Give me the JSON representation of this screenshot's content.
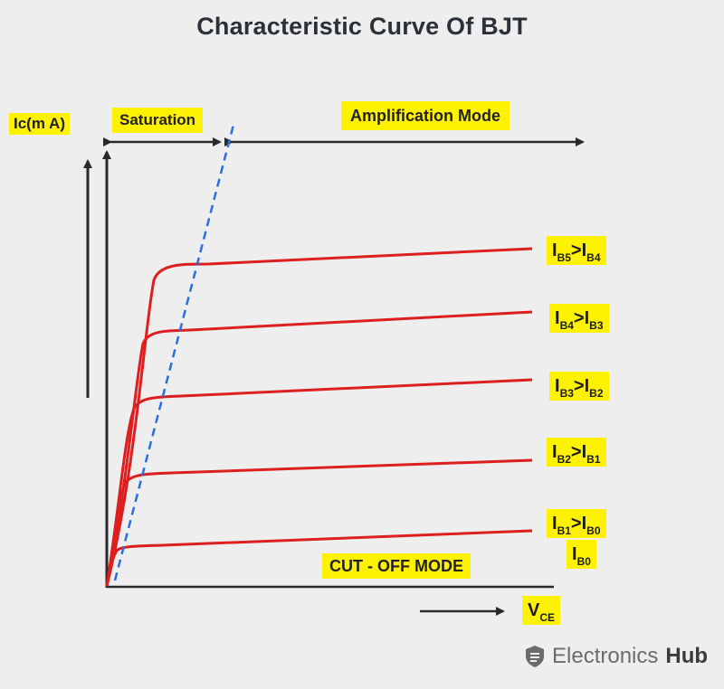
{
  "title": "Characteristic Curve Of BJT",
  "y_axis_label": "Ic(m A)",
  "x_axis_label": {
    "main": "V",
    "sub": "CE"
  },
  "regions": {
    "saturation": "Saturation",
    "amplification": "Amplification Mode",
    "cutoff": "CUT - OFF MODE"
  },
  "curves": [
    {
      "a": "I",
      "a_sub": "B5",
      "op": ">",
      "b": "I",
      "b_sub": "B4"
    },
    {
      "a": "I",
      "a_sub": "B4",
      "op": ">",
      "b": "I",
      "b_sub": "B3"
    },
    {
      "a": "I",
      "a_sub": "B3",
      "op": ">",
      "b": "I",
      "b_sub": "B2"
    },
    {
      "a": "I",
      "a_sub": "B2",
      "op": ">",
      "b": "I",
      "b_sub": "B1"
    },
    {
      "a": "I",
      "a_sub": "B1",
      "op": ">",
      "b": "I",
      "b_sub": "B0"
    }
  ],
  "ib0_label": {
    "main": "I",
    "sub": "B0"
  },
  "brand": {
    "name_light": "Electronics",
    "name_bold": "Hub"
  },
  "colors": {
    "curve": "#dd1f1f",
    "boundary": "#2a6fe0",
    "axis": "#2a2a2a",
    "label_bg": "#fff200"
  }
}
